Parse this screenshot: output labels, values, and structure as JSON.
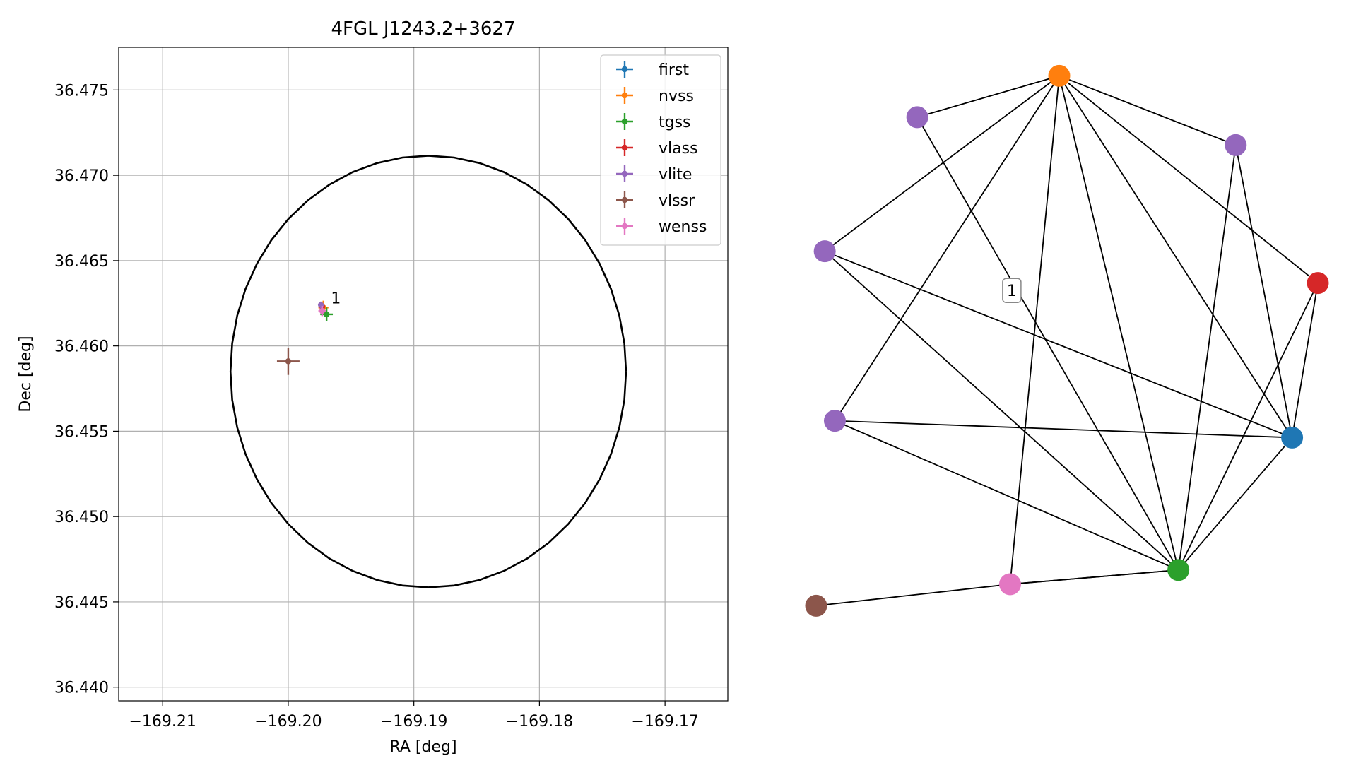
{
  "chart_data": [
    {
      "type": "scatter",
      "title": "4FGL J1243.2+3627",
      "xlabel": "RA [deg]",
      "ylabel": "Dec [deg]",
      "xlim": [
        -169.2135,
        -169.165
      ],
      "ylim": [
        36.4392,
        36.4775
      ],
      "xticks": [
        -169.21,
        -169.2,
        -169.19,
        -169.18,
        -169.17
      ],
      "xtick_labels": [
        "−169.21",
        "−169.20",
        "−169.19",
        "−169.18",
        "−169.17"
      ],
      "yticks": [
        36.44,
        36.445,
        36.45,
        36.455,
        36.46,
        36.465,
        36.47,
        36.475
      ],
      "ytick_labels": [
        "36.440",
        "36.445",
        "36.450",
        "36.455",
        "36.460",
        "36.465",
        "36.470",
        "36.475"
      ],
      "grid": true,
      "legend_position": "upper right",
      "ellipse": {
        "center": [
          -169.18885,
          36.4585
        ],
        "semi_axis_ra": 0.01575,
        "semi_axis_dec": 0.01265,
        "color": "#000000"
      },
      "annotations": [
        {
          "text": "1",
          "x": -169.1966,
          "y": 36.4625
        }
      ],
      "series": [
        {
          "name": "first",
          "color": "#1f77b4",
          "x": -169.19725,
          "y": 36.46225,
          "xerr": 0.0002,
          "yerr": 0.0002
        },
        {
          "name": "nvss",
          "color": "#ff7f0e",
          "x": -169.1972,
          "y": 36.46225,
          "xerr": 0.0004,
          "yerr": 0.0004
        },
        {
          "name": "tgss",
          "color": "#2ca02c",
          "x": -169.19695,
          "y": 36.46185,
          "xerr": 0.0005,
          "yerr": 0.0004
        },
        {
          "name": "vlass",
          "color": "#d62728",
          "x": -169.1973,
          "y": 36.4623,
          "xerr": 0.0001,
          "yerr": 0.0001
        },
        {
          "name": "vlite",
          "color": "#9467bd",
          "x": -169.1974,
          "y": 36.4624,
          "xerr": 0.0002,
          "yerr": 0.0002
        },
        {
          "name": "vlssr",
          "color": "#8c564b",
          "x": -169.2,
          "y": 36.4591,
          "xerr": 0.0009,
          "yerr": 0.0008
        },
        {
          "name": "wenss",
          "color": "#e377c2",
          "x": -169.1973,
          "y": 36.46205,
          "xerr": 0.0003,
          "yerr": 0.0003
        }
      ]
    },
    {
      "type": "network",
      "edge_label": "1",
      "nodes": [
        {
          "id": "orange",
          "color": "#ff7f0e",
          "x": 0.4845,
          "y": 0.0438
        },
        {
          "id": "purple-a",
          "color": "#9467bd",
          "x": 0.2016,
          "y": 0.1124
        },
        {
          "id": "purple-b",
          "color": "#9467bd",
          "x": 0.8363,
          "y": 0.1587
        },
        {
          "id": "purple-c",
          "color": "#9467bd",
          "x": 0.0171,
          "y": 0.3349
        },
        {
          "id": "red",
          "color": "#d62728",
          "x": 1.0,
          "y": 0.3876
        },
        {
          "id": "purple-d",
          "color": "#9467bd",
          "x": 0.0373,
          "y": 0.6162
        },
        {
          "id": "blue",
          "color": "#1f77b4",
          "x": 0.9487,
          "y": 0.6441
        },
        {
          "id": "green",
          "color": "#2ca02c",
          "x": 0.722,
          "y": 0.8638
        },
        {
          "id": "pink",
          "color": "#e377c2",
          "x": 0.3866,
          "y": 0.8874
        },
        {
          "id": "brown",
          "color": "#8c564b",
          "x": 0.0,
          "y": 0.9231
        }
      ],
      "edges": [
        [
          "orange",
          "purple-a"
        ],
        [
          "orange",
          "purple-b"
        ],
        [
          "orange",
          "purple-c"
        ],
        [
          "orange",
          "red"
        ],
        [
          "orange",
          "purple-d"
        ],
        [
          "orange",
          "blue"
        ],
        [
          "orange",
          "green"
        ],
        [
          "orange",
          "pink"
        ],
        [
          "purple-a",
          "green"
        ],
        [
          "purple-b",
          "blue"
        ],
        [
          "purple-b",
          "green"
        ],
        [
          "purple-c",
          "blue"
        ],
        [
          "purple-c",
          "green"
        ],
        [
          "red",
          "blue"
        ],
        [
          "red",
          "green"
        ],
        [
          "purple-d",
          "blue"
        ],
        [
          "purple-d",
          "green"
        ],
        [
          "blue",
          "green"
        ],
        [
          "green",
          "pink"
        ],
        [
          "green",
          "pink"
        ],
        [
          "pink",
          "brown"
        ]
      ]
    }
  ]
}
